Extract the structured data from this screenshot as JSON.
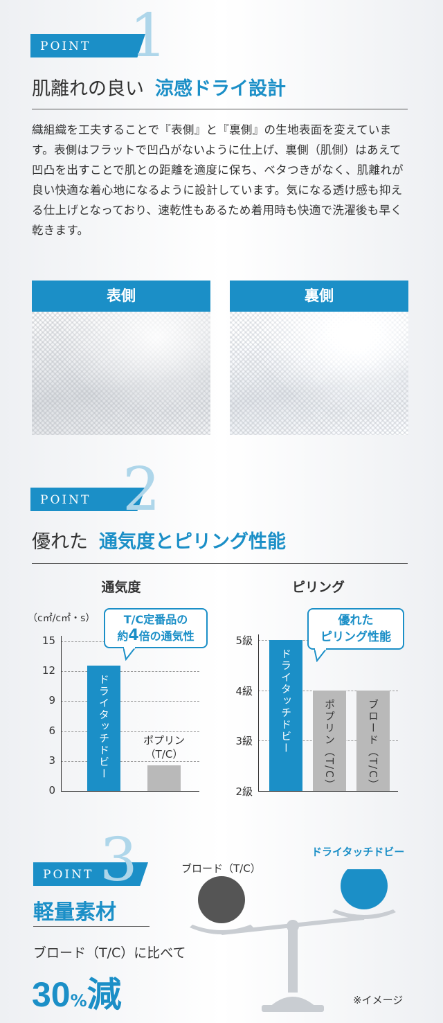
{
  "point1": {
    "badge": "POINT",
    "number": "1",
    "title_plain": "肌離れの良い",
    "title_accent": "涼感ドライ設計",
    "body": "織組織を工夫することで『表側』と『裏側』の生地表面を変えています。表側はフラットで凹凸がないように仕上げ、裏側（肌側）はあえて凹凸を出すことで肌との距離を適度に保ち、ベタつきがなく、肌離れが良い快適な着心地になるように設計しています。気になる透け感も抑える仕上げとなっており、速乾性もあるため着用時も快適で洗濯後も早く乾きます。",
    "front_label": "表側",
    "back_label": "裏側"
  },
  "point2": {
    "badge": "POINT",
    "number": "2",
    "title_plain": "優れた",
    "title_accent": "通気度とピリング性能"
  },
  "chart_data": [
    {
      "type": "bar",
      "title": "通気度",
      "ylabel": "（c㎡/c㎡・s）",
      "yticks": [
        "15",
        "12",
        "9",
        "6",
        "3",
        "0"
      ],
      "ylim": [
        0,
        15
      ],
      "categories": [
        "ドライタッチドビー",
        "ポプリン（T/C）"
      ],
      "values": [
        12.6,
        2.6
      ],
      "colors": [
        "#1b8fc7",
        "#b9b9b9"
      ],
      "callout": {
        "line1": "T/C定番品の",
        "line2_pre": "約",
        "line2_num": "4",
        "line2_post": "倍の通気性"
      }
    },
    {
      "type": "bar",
      "title": "ピリング",
      "yticks": [
        "5級",
        "4級",
        "3級",
        "2級"
      ],
      "ylim": [
        2,
        5
      ],
      "categories": [
        "ドライタッチドビー",
        "ポプリン（T/C）",
        "ブロード（T/C）"
      ],
      "values": [
        5,
        4,
        4
      ],
      "colors": [
        "#1b8fc7",
        "#b9b9b9",
        "#b9b9b9"
      ],
      "callout": {
        "line1": "優れた",
        "line2": "ピリング性能"
      }
    }
  ],
  "point3": {
    "badge": "POINT",
    "number": "3",
    "title": "軽量素材",
    "compare_text": "ブロード（T/C）に比べて",
    "reduction_num": "30",
    "reduction_unit": "%",
    "reduction_word": "減",
    "left_label": "ブロード（T/C）",
    "right_label": "ドライタッチドビー",
    "note": "※イメージ",
    "left_ball_color": "#555555",
    "right_ball_color": "#1b8fc7"
  }
}
